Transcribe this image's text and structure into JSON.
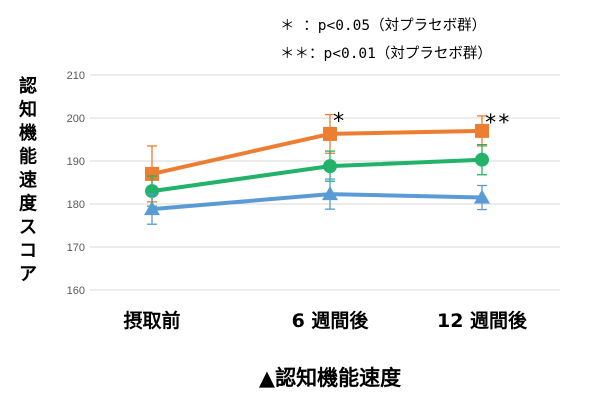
{
  "chart_data": {
    "type": "line",
    "title": "▲認知機能速度",
    "ylabel": "認知機能速度スコア",
    "xlabel": "",
    "ylim": [
      160,
      210
    ],
    "yticks": [
      160,
      170,
      180,
      190,
      200,
      210
    ],
    "grid": true,
    "categories": [
      "摂取前",
      "6 週間後",
      "12 週間後"
    ],
    "series": [
      {
        "color": "#ED7D31",
        "marker": "square",
        "values": [
          187,
          196.3,
          197
        ],
        "errors": [
          6.5,
          4.5,
          3.5
        ]
      },
      {
        "color": "#22B26A",
        "marker": "circle",
        "values": [
          183,
          188.8,
          190.3
        ],
        "errors": [
          3.5,
          3.5,
          3.5
        ]
      },
      {
        "color": "#5B9BD5",
        "marker": "triangle",
        "values": [
          178.8,
          182.3,
          181.5
        ],
        "errors": [
          3.5,
          3.5,
          2.8
        ]
      }
    ],
    "significance": [
      "",
      "*",
      "**"
    ],
    "annotations": [
      "＊  ：p<0.05（対プラセボ群）",
      "＊＊：p<0.01（対プラセボ群）"
    ]
  }
}
